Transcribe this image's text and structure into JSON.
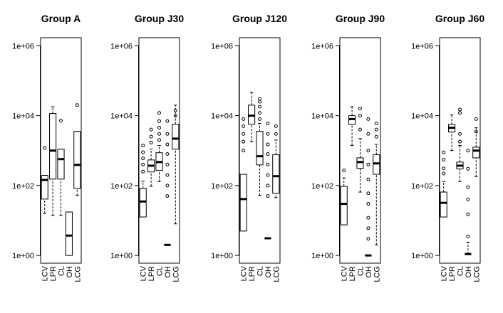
{
  "chart_data": [
    {
      "type": "box",
      "title": "Group A",
      "log": true,
      "ylim": [
        0.6,
        1700000
      ],
      "yticks": [
        {
          "value": 1,
          "label": "1e+00"
        },
        {
          "value": 100,
          "label": "1e+02"
        },
        {
          "value": 10000,
          "label": "1e+04"
        },
        {
          "value": 1000000,
          "label": "1e+06"
        }
      ],
      "categories": [
        "LCV",
        "LPR",
        "CL",
        "OH",
        "LCG"
      ],
      "boxes": [
        {
          "low": 16,
          "q1": 41,
          "median": 145,
          "q3": 195,
          "high": 195,
          "outliers": [
            1200
          ]
        },
        {
          "low": 14,
          "q1": 153,
          "median": 1000,
          "q3": 11500,
          "high": 18000,
          "outliers": []
        },
        {
          "low": 14,
          "q1": 153,
          "median": 570,
          "q3": 1100,
          "high": 1100,
          "outliers": [
            7200
          ]
        },
        {
          "low": 1,
          "q1": 1,
          "median": 3.7,
          "q3": 17.5,
          "high": 17.5,
          "outliers": []
        },
        {
          "low": 52,
          "q1": 83,
          "median": 390,
          "q3": 3550,
          "high": 3550,
          "outliers": [
            20000
          ]
        }
      ]
    },
    {
      "type": "box",
      "title": "Group J30",
      "log": true,
      "ylim": [
        0.6,
        1700000
      ],
      "yticks": [
        {
          "value": 1,
          "label": "1e+00"
        },
        {
          "value": 100,
          "label": "1e+02"
        },
        {
          "value": 10000,
          "label": "1e+04"
        },
        {
          "value": 1000000,
          "label": "1e+06"
        }
      ],
      "categories": [
        "LCV",
        "LPR",
        "CL",
        "OH",
        "LCG"
      ],
      "boxes": [
        {
          "low": 12.6,
          "q1": 12.6,
          "median": 35,
          "q3": 83,
          "high": 132,
          "outliers": [
            250,
            400,
            600,
            900,
            1400
          ]
        },
        {
          "low": 95,
          "q1": 245,
          "median": 370,
          "q3": 540,
          "high": 1100,
          "outliers": [
            1700,
            2500,
            4000
          ]
        },
        {
          "low": 130,
          "q1": 270,
          "median": 470,
          "q3": 870,
          "high": 1400,
          "outliers": [
            2000,
            3000,
            4500,
            7000,
            12000
          ]
        },
        {
          "low": 2,
          "q1": 2,
          "median": 2,
          "q3": 2,
          "high": 2,
          "outliers": [
            50,
            100,
            200,
            400,
            800,
            1500,
            3000,
            7000
          ]
        },
        {
          "low": 8,
          "q1": 1100,
          "median": 2200,
          "q3": 5700,
          "high": 20000,
          "outliers": [
            10000,
            14000
          ]
        }
      ]
    },
    {
      "type": "box",
      "title": "Group J120",
      "log": true,
      "ylim": [
        0.6,
        1700000
      ],
      "yticks": [
        {
          "value": 1,
          "label": "1e+00"
        },
        {
          "value": 100,
          "label": "1e+02"
        },
        {
          "value": 10000,
          "label": "1e+04"
        },
        {
          "value": 1000000,
          "label": "1e+06"
        }
      ],
      "categories": [
        "LCV",
        "LPR",
        "CL",
        "OH",
        "LCG"
      ],
      "boxes": [
        {
          "low": 5,
          "q1": 5,
          "median": 41,
          "q3": 210,
          "high": 210,
          "outliers": [
            1000,
            1800,
            3000,
            5000,
            8000
          ]
        },
        {
          "low": 1800,
          "q1": 5700,
          "median": 10000,
          "q3": 20000,
          "high": 47000,
          "outliers": []
        },
        {
          "low": 52,
          "q1": 390,
          "median": 690,
          "q3": 3550,
          "high": 6000,
          "outliers": [
            8000,
            12000,
            18000,
            25000,
            30000
          ]
        },
        {
          "low": 3.1,
          "q1": 3.1,
          "median": 3.1,
          "q3": 3.1,
          "high": 3.1,
          "outliers": [
            50,
            100,
            200,
            400,
            800,
            1500,
            3000,
            6000
          ]
        },
        {
          "low": 45,
          "q1": 60,
          "median": 185,
          "q3": 760,
          "high": 2000,
          "outliers": [
            3000,
            5000
          ]
        }
      ]
    },
    {
      "type": "box",
      "title": "Group J90",
      "log": true,
      "ylim": [
        0.6,
        1700000
      ],
      "yticks": [
        {
          "value": 1,
          "label": "1e+00"
        },
        {
          "value": 100,
          "label": "1e+02"
        },
        {
          "value": 10000,
          "label": "1e+04"
        },
        {
          "value": 1000000,
          "label": "1e+06"
        }
      ],
      "categories": [
        "LCV",
        "LPR",
        "CL",
        "OH",
        "LCG"
      ],
      "boxes": [
        {
          "low": 7.5,
          "q1": 7.5,
          "median": 30,
          "q3": 95,
          "high": 165,
          "outliers": [
            270
          ]
        },
        {
          "low": 1400,
          "q1": 5700,
          "median": 8000,
          "q3": 10000,
          "high": 18000,
          "outliers": []
        },
        {
          "low": 65,
          "q1": 310,
          "median": 470,
          "q3": 620,
          "high": 2200,
          "outliers": [
            4000,
            10000,
            16000
          ]
        },
        {
          "low": 1,
          "q1": 1,
          "median": 1,
          "q3": 1,
          "high": 1,
          "outliers": [
            3,
            6,
            12,
            30,
            60,
            150,
            400,
            1000,
            3000,
            8000
          ]
        },
        {
          "low": 2,
          "q1": 210,
          "median": 430,
          "q3": 760,
          "high": 1500,
          "outliers": [
            2500,
            4000,
            6000
          ]
        }
      ]
    },
    {
      "type": "box",
      "title": "Group J60",
      "log": true,
      "ylim": [
        0.6,
        1700000
      ],
      "yticks": [
        {
          "value": 1,
          "label": "1e+00"
        },
        {
          "value": 100,
          "label": "1e+02"
        },
        {
          "value": 10000,
          "label": "1e+04"
        },
        {
          "value": 1000000,
          "label": "1e+06"
        }
      ],
      "categories": [
        "LCV",
        "LPR",
        "CL",
        "OH",
        "LCG"
      ],
      "boxes": [
        {
          "low": 12.6,
          "q1": 12.6,
          "median": 32,
          "q3": 65,
          "high": 130,
          "outliers": [
            220,
            310,
            550,
            890
          ]
        },
        {
          "low": 1000,
          "q1": 3400,
          "median": 4500,
          "q3": 5600,
          "high": 10500,
          "outliers": []
        },
        {
          "low": 130,
          "q1": 300,
          "median": 370,
          "q3": 470,
          "high": 1400,
          "outliers": [
            1800,
            3000,
            12000,
            15000
          ]
        },
        {
          "low": 1.1,
          "q1": 1.1,
          "median": 1.1,
          "q3": 1.1,
          "high": 2.4,
          "outliers": [
            3.5,
            15,
            40,
            90,
            300,
            1000
          ]
        },
        {
          "low": 180,
          "q1": 620,
          "median": 1000,
          "q3": 1250,
          "high": 4500,
          "outliers": [
            3500,
            8000
          ]
        }
      ]
    }
  ]
}
